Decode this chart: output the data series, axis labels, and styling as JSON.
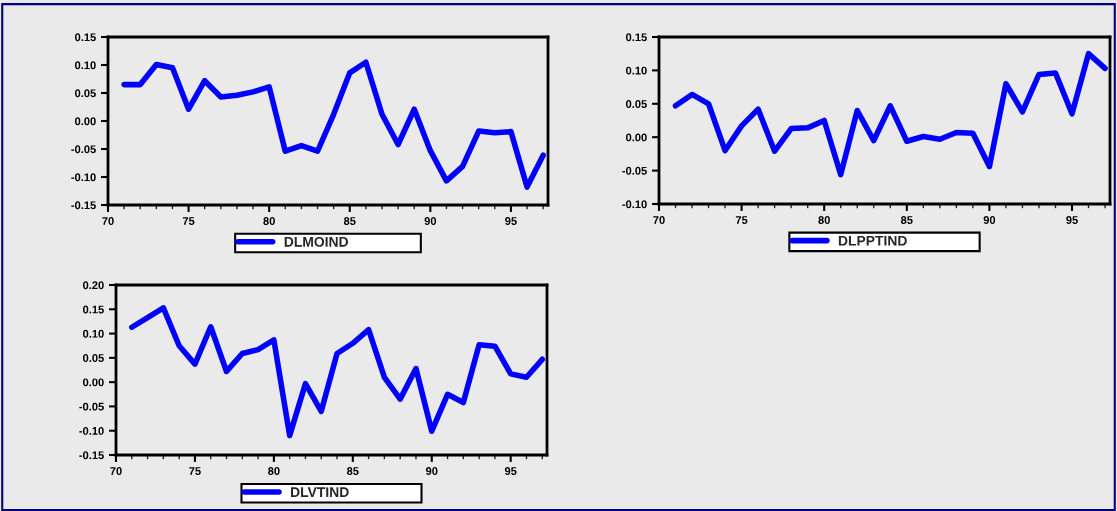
{
  "chart_data": [
    {
      "type": "line",
      "x": [
        71,
        72,
        73,
        74,
        75,
        76,
        77,
        78,
        79,
        80,
        81,
        82,
        83,
        84,
        85,
        86,
        87,
        88,
        89,
        90,
        91,
        92,
        93,
        94,
        95,
        96,
        97
      ],
      "series": [
        {
          "name": "DLMOIND",
          "color": "#0000ff",
          "values": [
            0.065,
            0.065,
            0.101,
            0.095,
            0.021,
            0.072,
            0.043,
            0.046,
            0.052,
            0.061,
            -0.054,
            -0.044,
            -0.054,
            0.012,
            0.086,
            0.105,
            0.012,
            -0.042,
            0.021,
            -0.053,
            -0.107,
            -0.081,
            -0.018,
            -0.021,
            -0.019,
            -0.118,
            -0.061
          ]
        }
      ],
      "xlim": [
        70,
        97.3
      ],
      "xticks": [
        70,
        75,
        80,
        85,
        90,
        95
      ],
      "ylim": [
        -0.15,
        0.15
      ],
      "yticks": [
        {
          "value": -0.15,
          "label": "-0.15"
        },
        {
          "value": -0.1,
          "label": "-0.10"
        },
        {
          "value": -0.05,
          "label": "-0.05"
        },
        {
          "value": 0,
          "label": "0.00"
        },
        {
          "value": 0.05,
          "label": "0.05"
        },
        {
          "value": 0.1,
          "label": "0.10"
        },
        {
          "value": 0.15,
          "label": "0.15"
        }
      ],
      "grid": false,
      "legend": "bottom",
      "line_style": "solid",
      "marker": "none"
    },
    {
      "type": "line",
      "x": [
        71,
        72,
        73,
        74,
        75,
        76,
        77,
        78,
        79,
        80,
        81,
        82,
        83,
        84,
        85,
        86,
        87,
        88,
        89,
        90,
        91,
        92,
        93,
        94,
        95,
        96,
        97
      ],
      "series": [
        {
          "name": "DLPPTIND",
          "color": "#0000ff",
          "values": [
            0.047,
            0.064,
            0.05,
            -0.02,
            0.017,
            0.042,
            -0.021,
            0.013,
            0.014,
            0.025,
            -0.056,
            0.04,
            -0.005,
            0.047,
            -0.006,
            0.001,
            -0.003,
            0.007,
            0.006,
            -0.044,
            0.08,
            0.038,
            0.094,
            0.096,
            0.035,
            0.125,
            0.103
          ]
        }
      ],
      "xlim": [
        70,
        97.3
      ],
      "xticks": [
        70,
        75,
        80,
        85,
        90,
        95
      ],
      "ylim": [
        -0.1,
        0.15
      ],
      "yticks": [
        {
          "value": -0.1,
          "label": "-0.10"
        },
        {
          "value": -0.05,
          "label": "-0.05"
        },
        {
          "value": 0,
          "label": "0.00"
        },
        {
          "value": 0.05,
          "label": "0.05"
        },
        {
          "value": 0.1,
          "label": "0.10"
        },
        {
          "value": 0.15,
          "label": "0.15"
        }
      ],
      "grid": false,
      "legend": "bottom",
      "line_style": "solid",
      "marker": "none"
    },
    {
      "type": "line",
      "x": [
        71,
        72,
        73,
        74,
        75,
        76,
        77,
        78,
        79,
        80,
        81,
        82,
        83,
        84,
        85,
        86,
        87,
        88,
        89,
        90,
        91,
        92,
        93,
        94,
        95,
        96,
        97
      ],
      "series": [
        {
          "name": "DLVTIND",
          "color": "#0000ff",
          "values": [
            0.113,
            0.133,
            0.153,
            0.075,
            0.037,
            0.114,
            0.022,
            0.059,
            0.067,
            0.087,
            -0.11,
            -0.003,
            -0.06,
            0.059,
            0.08,
            0.108,
            0.01,
            -0.035,
            0.028,
            -0.101,
            -0.025,
            -0.042,
            0.077,
            0.074,
            0.017,
            0.01,
            0.047
          ]
        }
      ],
      "xlim": [
        70,
        97.3
      ],
      "xticks": [
        70,
        75,
        80,
        85,
        90,
        95
      ],
      "ylim": [
        -0.15,
        0.2
      ],
      "yticks": [
        {
          "value": -0.15,
          "label": "-0.15"
        },
        {
          "value": -0.1,
          "label": "-0.10"
        },
        {
          "value": -0.05,
          "label": "-0.05"
        },
        {
          "value": 0,
          "label": "0.00"
        },
        {
          "value": 0.05,
          "label": "0.05"
        },
        {
          "value": 0.1,
          "label": "0.10"
        },
        {
          "value": 0.15,
          "label": "0.15"
        },
        {
          "value": 0.2,
          "label": "0.20"
        }
      ],
      "grid": false,
      "legend": "bottom",
      "line_style": "solid",
      "marker": "none"
    }
  ]
}
